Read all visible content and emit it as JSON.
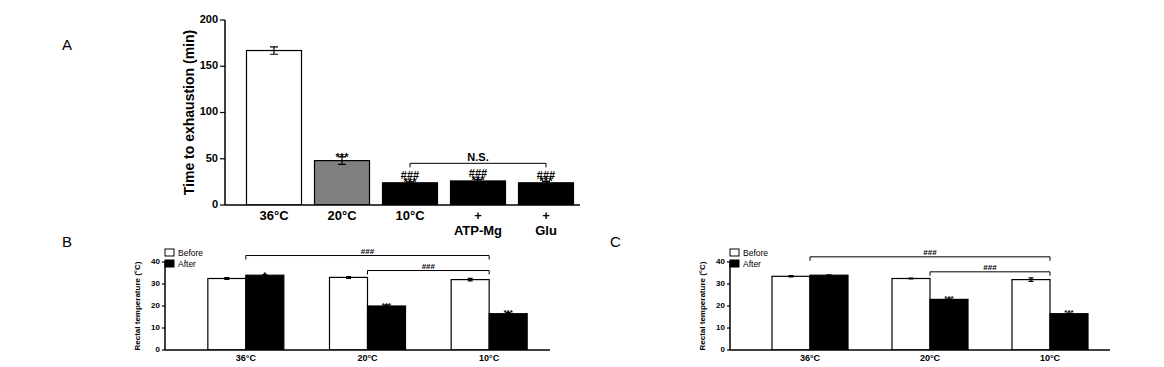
{
  "chart_data": [
    {
      "type": "bar",
      "title": "A",
      "y_label": "Time to exhaustion (min)",
      "categories": [
        "36°C",
        "20°C",
        "10°C",
        "+\nATP-Mg",
        "+\nGlu"
      ],
      "values": [
        167,
        48,
        24,
        26,
        24
      ],
      "errors": [
        4,
        4,
        1,
        1.5,
        1.5
      ],
      "colors": [
        "#ffffff",
        "#808080",
        "#000000",
        "#000000",
        "#000000"
      ],
      "ylim": [
        0,
        200
      ],
      "yticks": [
        0,
        50,
        100,
        150,
        200
      ],
      "annotations": [
        {
          "text": "***",
          "category": 1
        },
        {
          "text": "***",
          "category": 2
        },
        {
          "text": "###",
          "category": 2
        },
        {
          "text": "***",
          "category": 3
        },
        {
          "text": "###",
          "category": 3
        },
        {
          "text": "***",
          "category": 4
        },
        {
          "text": "###",
          "category": 4
        },
        {
          "text": "N.S.",
          "from": 2,
          "to": 4
        }
      ]
    },
    {
      "type": "bar",
      "title": "B",
      "y_label": "Rectal temperature (°C)",
      "categories": [
        "36°C",
        "20°C",
        "10°C"
      ],
      "series": [
        {
          "name": "Before",
          "color": "#ffffff",
          "values": [
            32.5,
            33,
            32
          ],
          "errors": [
            0.4,
            0.4,
            0.6
          ]
        },
        {
          "name": "After",
          "color": "#000000",
          "values": [
            34,
            20,
            16.5
          ],
          "errors": [
            0.3,
            0.4,
            0.5
          ]
        }
      ],
      "ylim": [
        0,
        40
      ],
      "yticks": [
        0,
        10,
        20,
        30,
        40
      ],
      "legend": "top-left",
      "annotations": [
        {
          "text": "*",
          "category": 0,
          "series": 1
        },
        {
          "text": "***",
          "category": 1,
          "series": 1
        },
        {
          "text": "***",
          "category": 2,
          "series": 1
        },
        {
          "text": "###",
          "from": 0,
          "to": 2
        },
        {
          "text": "###",
          "from": 1,
          "to": 2
        }
      ]
    },
    {
      "type": "bar",
      "title": "C",
      "y_label": "Rectal temperature (°C)",
      "categories": [
        "36°C",
        "20°C",
        "10°C"
      ],
      "series": [
        {
          "name": "Before",
          "color": "#ffffff",
          "values": [
            33.5,
            32.5,
            32
          ],
          "errors": [
            0.3,
            0.2,
            0.8
          ]
        },
        {
          "name": "After",
          "color": "#000000",
          "values": [
            34,
            23,
            16.5
          ],
          "errors": [
            0.2,
            0.3,
            0.3
          ]
        }
      ],
      "ylim": [
        0,
        40
      ],
      "yticks": [
        0,
        10,
        20,
        30,
        40
      ],
      "legend": "top-left",
      "annotations": [
        {
          "text": "***",
          "category": 1,
          "series": 1
        },
        {
          "text": "***",
          "category": 2,
          "series": 1
        },
        {
          "text": "###",
          "from": 0,
          "to": 2
        },
        {
          "text": "###",
          "from": 1,
          "to": 2
        }
      ]
    }
  ]
}
